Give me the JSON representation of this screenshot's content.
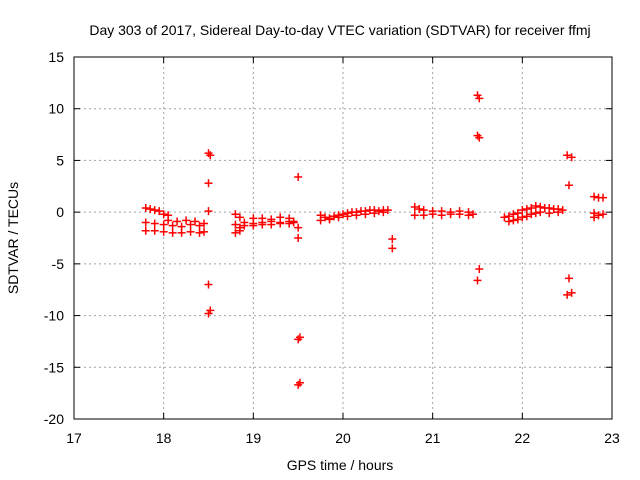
{
  "chart_data": {
    "type": "scatter",
    "title": "Day 303 of 2017, Sidereal Day-to-day VTEC variation (SDTVAR) for receiver ffmj",
    "xlabel": "GPS time / hours",
    "ylabel": "SDTVAR / TECUs",
    "xlim": [
      17,
      23
    ],
    "ylim": [
      -20,
      15
    ],
    "xticks": [
      "17",
      "18",
      "19",
      "20",
      "21",
      "22",
      "23"
    ],
    "yticks": [
      "-20",
      "-15",
      "-10",
      "-5",
      "0",
      "5",
      "10",
      "15"
    ],
    "grid": true,
    "marker_color": "#ff0000",
    "series": [
      {
        "name": "SDTVAR",
        "points": [
          [
            17.8,
            0.4
          ],
          [
            17.85,
            0.3
          ],
          [
            17.9,
            0.2
          ],
          [
            17.95,
            0.1
          ],
          [
            18.0,
            -0.2
          ],
          [
            18.05,
            -0.3
          ],
          [
            17.8,
            -1.0
          ],
          [
            17.9,
            -1.1
          ],
          [
            18.0,
            -1.2
          ],
          [
            18.1,
            -1.3
          ],
          [
            18.2,
            -1.4
          ],
          [
            18.3,
            -1.2
          ],
          [
            18.4,
            -1.3
          ],
          [
            18.45,
            -1.1
          ],
          [
            17.8,
            -1.8
          ],
          [
            17.9,
            -1.8
          ],
          [
            18.0,
            -1.9
          ],
          [
            18.1,
            -2.0
          ],
          [
            18.2,
            -2.0
          ],
          [
            18.3,
            -1.9
          ],
          [
            18.4,
            -2.0
          ],
          [
            18.45,
            -1.9
          ],
          [
            18.05,
            -0.8
          ],
          [
            18.15,
            -0.9
          ],
          [
            18.25,
            -0.8
          ],
          [
            18.35,
            -0.9
          ],
          [
            18.5,
            5.7
          ],
          [
            18.52,
            5.5
          ],
          [
            18.5,
            2.8
          ],
          [
            18.5,
            0.1
          ],
          [
            18.5,
            -7.0
          ],
          [
            18.5,
            -9.8
          ],
          [
            18.52,
            -9.5
          ],
          [
            18.8,
            -0.2
          ],
          [
            18.85,
            -0.5
          ],
          [
            18.8,
            -1.2
          ],
          [
            18.85,
            -1.5
          ],
          [
            18.8,
            -2.0
          ],
          [
            18.85,
            -1.8
          ],
          [
            18.9,
            -1.0
          ],
          [
            19.0,
            -1.1
          ],
          [
            19.1,
            -1.0
          ],
          [
            19.2,
            -0.9
          ],
          [
            19.3,
            -1.0
          ],
          [
            19.4,
            -0.9
          ],
          [
            19.45,
            -0.9
          ],
          [
            18.9,
            -1.3
          ],
          [
            19.0,
            -1.3
          ],
          [
            19.1,
            -1.2
          ],
          [
            19.2,
            -1.2
          ],
          [
            19.3,
            -1.1
          ],
          [
            19.4,
            -1.1
          ],
          [
            19.45,
            -1.0
          ],
          [
            19.0,
            -0.6
          ],
          [
            19.1,
            -0.6
          ],
          [
            19.2,
            -0.7
          ],
          [
            19.3,
            -0.5
          ],
          [
            19.4,
            -0.6
          ],
          [
            19.5,
            3.4
          ],
          [
            19.5,
            -1.5
          ],
          [
            19.5,
            -2.5
          ],
          [
            19.5,
            -12.3
          ],
          [
            19.52,
            -12.1
          ],
          [
            19.5,
            -16.7
          ],
          [
            19.52,
            -16.5
          ],
          [
            19.75,
            -0.3
          ],
          [
            19.8,
            -0.5
          ],
          [
            19.85,
            -0.6
          ],
          [
            19.9,
            -0.4
          ],
          [
            19.95,
            -0.3
          ],
          [
            20.0,
            -0.2
          ],
          [
            20.05,
            -0.1
          ],
          [
            20.1,
            0.0
          ],
          [
            20.15,
            0.0
          ],
          [
            20.2,
            0.1
          ],
          [
            20.25,
            0.1
          ],
          [
            20.3,
            0.2
          ],
          [
            20.35,
            0.2
          ],
          [
            20.4,
            0.1
          ],
          [
            20.45,
            0.2
          ],
          [
            20.5,
            0.2
          ],
          [
            19.75,
            -0.8
          ],
          [
            19.85,
            -0.7
          ],
          [
            19.95,
            -0.5
          ],
          [
            20.05,
            -0.4
          ],
          [
            20.15,
            -0.3
          ],
          [
            20.25,
            -0.2
          ],
          [
            20.35,
            -0.1
          ],
          [
            20.45,
            0.0
          ],
          [
            20.55,
            -2.6
          ],
          [
            20.55,
            -3.5
          ],
          [
            20.8,
            0.5
          ],
          [
            20.85,
            0.3
          ],
          [
            20.9,
            0.2
          ],
          [
            21.0,
            0.1
          ],
          [
            21.1,
            0.1
          ],
          [
            21.2,
            0.0
          ],
          [
            21.3,
            0.1
          ],
          [
            21.4,
            0.0
          ],
          [
            21.45,
            -0.2
          ],
          [
            20.8,
            -0.3
          ],
          [
            20.9,
            -0.3
          ],
          [
            21.0,
            -0.2
          ],
          [
            21.1,
            -0.3
          ],
          [
            21.2,
            -0.2
          ],
          [
            21.3,
            -0.2
          ],
          [
            21.4,
            -0.3
          ],
          [
            21.5,
            11.3
          ],
          [
            21.52,
            11.0
          ],
          [
            21.5,
            7.4
          ],
          [
            21.52,
            7.2
          ],
          [
            21.52,
            -5.5
          ],
          [
            21.5,
            -6.6
          ],
          [
            21.8,
            -0.5
          ],
          [
            21.85,
            -0.4
          ],
          [
            21.9,
            -0.2
          ],
          [
            21.95,
            -0.1
          ],
          [
            22.0,
            0.2
          ],
          [
            22.05,
            0.3
          ],
          [
            22.1,
            0.4
          ],
          [
            22.15,
            0.6
          ],
          [
            22.2,
            0.5
          ],
          [
            22.25,
            0.4
          ],
          [
            22.3,
            0.4
          ],
          [
            22.35,
            0.3
          ],
          [
            22.4,
            0.3
          ],
          [
            22.45,
            0.2
          ],
          [
            21.85,
            -0.9
          ],
          [
            21.9,
            -0.8
          ],
          [
            21.95,
            -0.7
          ],
          [
            22.0,
            -0.5
          ],
          [
            22.05,
            -0.4
          ],
          [
            22.1,
            -0.2
          ],
          [
            22.15,
            -0.1
          ],
          [
            22.2,
            0.0
          ],
          [
            22.3,
            -0.1
          ],
          [
            22.4,
            0.0
          ],
          [
            22.5,
            5.5
          ],
          [
            22.55,
            5.3
          ],
          [
            22.52,
            2.6
          ],
          [
            22.52,
            -6.4
          ],
          [
            22.5,
            -8.0
          ],
          [
            22.55,
            -7.8
          ],
          [
            22.8,
            1.5
          ],
          [
            22.85,
            1.4
          ],
          [
            22.9,
            1.4
          ],
          [
            22.8,
            -0.1
          ],
          [
            22.85,
            -0.3
          ],
          [
            22.9,
            -0.2
          ],
          [
            22.8,
            -0.5
          ]
        ]
      }
    ]
  }
}
